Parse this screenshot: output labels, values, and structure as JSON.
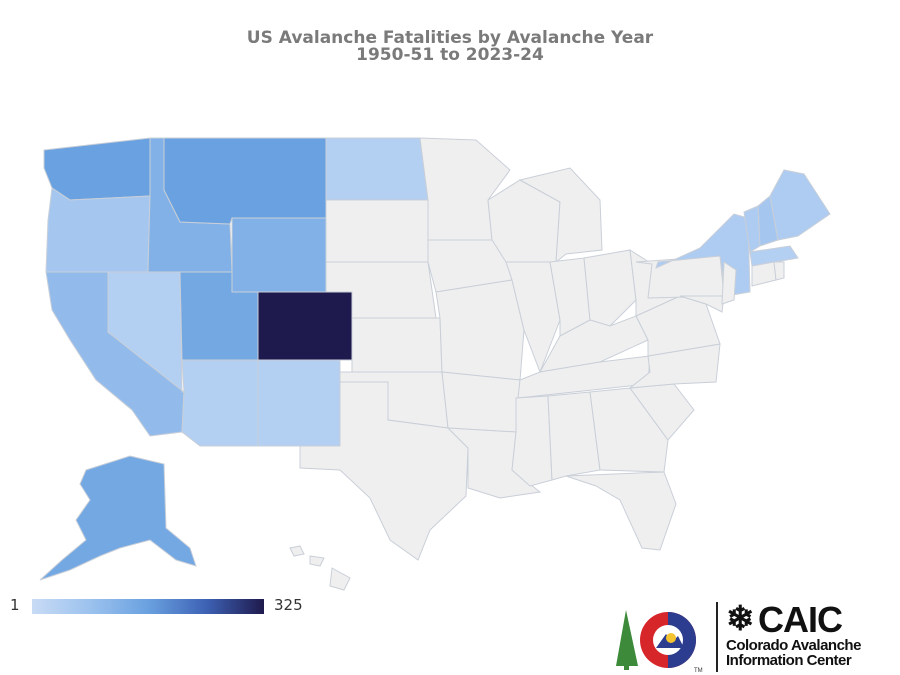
{
  "title": {
    "line1": "US Avalanche Fatalities by Avalanche Year",
    "line2": "1950-51 to 2023-24"
  },
  "legend": {
    "min_label": "1",
    "max_label": "325",
    "color_low": "#c8dbf5",
    "color_high": "#1f1a4d"
  },
  "logo": {
    "acronym": "CAIC",
    "name_line1": "Colorado Avalanche",
    "name_line2": "Information Center",
    "trademark": "TM"
  },
  "colors": {
    "no_data": "#efefef",
    "border": "#c9cfd8",
    "title": "#7a7a7a"
  },
  "chart_data": {
    "type": "choropleth",
    "value_range": [
      1,
      325
    ],
    "states_shaded": [
      {
        "state": "Colorado",
        "level": 1.0
      },
      {
        "state": "Washington",
        "level": 0.5
      },
      {
        "state": "Montana",
        "level": 0.5
      },
      {
        "state": "Utah",
        "level": 0.45
      },
      {
        "state": "Alaska",
        "level": 0.45
      },
      {
        "state": "Idaho",
        "level": 0.38
      },
      {
        "state": "Wyoming",
        "level": 0.38
      },
      {
        "state": "California",
        "level": 0.3
      },
      {
        "state": "Oregon",
        "level": 0.2
      },
      {
        "state": "Nevada",
        "level": 0.12
      },
      {
        "state": "Arizona",
        "level": 0.12
      },
      {
        "state": "New Mexico",
        "level": 0.12
      },
      {
        "state": "North Dakota",
        "level": 0.12
      },
      {
        "state": "New York",
        "level": 0.15
      },
      {
        "state": "Vermont",
        "level": 0.15
      },
      {
        "state": "New Hampshire",
        "level": 0.2
      },
      {
        "state": "Maine",
        "level": 0.15
      },
      {
        "state": "Massachusetts",
        "level": 0.12
      }
    ]
  }
}
